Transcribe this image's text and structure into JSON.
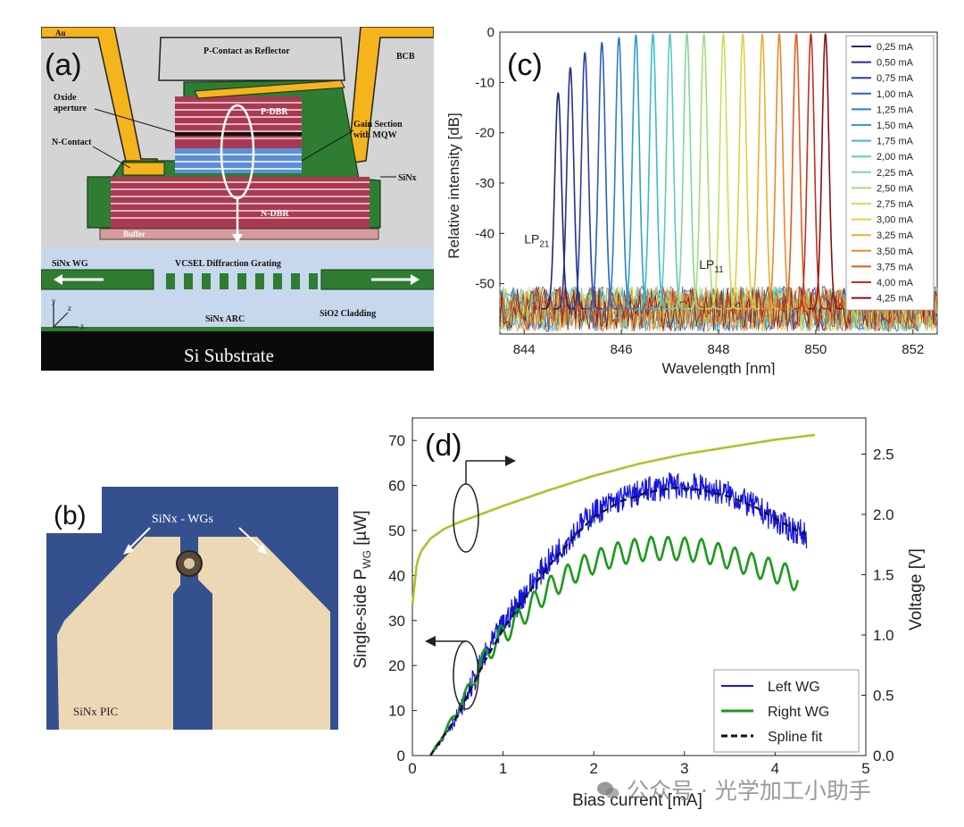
{
  "panel_a": {
    "label": "(a)",
    "texts": {
      "au": "Au",
      "p_contact": "P-Contact as Reflector",
      "bcb": "BCB",
      "oxide": "Oxide\naperture",
      "p_dbr": "P-DBR",
      "gain": "Gain Section\nwith MQW",
      "n_contact": "N-Contact",
      "sinx": "SiNx",
      "n_dbr": "N-DBR",
      "buffer": "Buffer",
      "sin_wg": "SiNx WG",
      "grating": "VCSEL Diffraction Grating",
      "axis_y": "y",
      "axis_z": "z",
      "axis_x": "x",
      "arc": "SiNx ARC",
      "cladding": "SiO2 Cladding",
      "substrate": "Si Substrate"
    },
    "colors": {
      "au": "#f5b41c",
      "green": "#2e7d32",
      "dbr": "#a83a52",
      "mqw": "#5b8fd6",
      "buffer": "#d89a9a",
      "bcb": "#d4d4d4",
      "cladding": "#c8d8ec",
      "substrate": "#0a0a0a"
    }
  },
  "panel_b": {
    "label": "(b)",
    "wg_label": "SiNx - WGs",
    "pic_label": "SiNx PIC",
    "colors": {
      "chip": "#34508f",
      "pad": "#ecd8b4"
    }
  },
  "chart_data": [
    {
      "panel": "(c)",
      "type": "line",
      "xlabel": "Wavelength [nm]",
      "ylabel": "Relative intensity [dB]",
      "xlim": [
        843.5,
        852.5
      ],
      "ylim": [
        -60,
        0
      ],
      "xticks": [
        844,
        846,
        848,
        850,
        852
      ],
      "yticks": [
        0,
        -10,
        -20,
        -30,
        -40,
        -50
      ],
      "annotations": [
        {
          "text": "LP21",
          "main": "LP",
          "sub": "21",
          "x": 844.0,
          "y": -42
        },
        {
          "text": "LP11",
          "main": "LP",
          "sub": "11",
          "x": 847.6,
          "y": -47
        }
      ],
      "legend_position": "top-right",
      "noise_floor_db": -55,
      "series": [
        {
          "name": "0,25 mA",
          "color": "#1f2a6b",
          "peak_nm": 844.7,
          "peak_db": -12
        },
        {
          "name": "0,50 mA",
          "color": "#24318a",
          "peak_nm": 844.95,
          "peak_db": -7
        },
        {
          "name": "0,75 mA",
          "color": "#2640a8",
          "peak_nm": 845.25,
          "peak_db": -4
        },
        {
          "name": "1,00 mA",
          "color": "#2860b8",
          "peak_nm": 845.6,
          "peak_db": -2
        },
        {
          "name": "1,25 mA",
          "color": "#2a80c4",
          "peak_nm": 845.95,
          "peak_db": -1
        },
        {
          "name": "1,50 mA",
          "color": "#2aa0d0",
          "peak_nm": 846.3,
          "peak_db": -0.5
        },
        {
          "name": "1,75 mA",
          "color": "#36bcd0",
          "peak_nm": 846.65,
          "peak_db": -0.3
        },
        {
          "name": "2,00 mA",
          "color": "#5cccb8",
          "peak_nm": 847.0,
          "peak_db": -0.3
        },
        {
          "name": "2,25 mA",
          "color": "#84d69a",
          "peak_nm": 847.35,
          "peak_db": -0.3
        },
        {
          "name": "2,50 mA",
          "color": "#a8dc78",
          "peak_nm": 847.7,
          "peak_db": -0.3
        },
        {
          "name": "2,75 mA",
          "color": "#c8e05a",
          "peak_nm": 848.1,
          "peak_db": -0.3
        },
        {
          "name": "3,00 mA",
          "color": "#e0d040",
          "peak_nm": 848.5,
          "peak_db": -0.3
        },
        {
          "name": "3,25 mA",
          "color": "#ecb030",
          "peak_nm": 848.9,
          "peak_db": -0.3
        },
        {
          "name": "3,50 mA",
          "color": "#e88a28",
          "peak_nm": 849.25,
          "peak_db": -0.3
        },
        {
          "name": "3,75 mA",
          "color": "#dc5e20",
          "peak_nm": 849.6,
          "peak_db": -0.3
        },
        {
          "name": "4,00 mA",
          "color": "#c0301c",
          "peak_nm": 849.9,
          "peak_db": -0.3
        },
        {
          "name": "4,25 mA",
          "color": "#8a1010",
          "peak_nm": 850.2,
          "peak_db": -0.3
        }
      ]
    },
    {
      "panel": "(d)",
      "type": "line",
      "xlabel": "Bias current [mA]",
      "ylabel": "Single-side P_WG [µW]",
      "ylabel_parts": [
        "Single-side P",
        "WG",
        " [µW]"
      ],
      "y2label": "Voltage [V]",
      "xlim": [
        0,
        5
      ],
      "ylim": [
        0,
        75
      ],
      "y2lim": [
        0,
        2.8
      ],
      "xticks": [
        0,
        1,
        2,
        3,
        4,
        5
      ],
      "yticks": [
        0,
        10,
        20,
        30,
        40,
        50,
        60,
        70
      ],
      "y2ticks": [
        "0.0",
        "0.5",
        "1.0",
        "1.5",
        "2.0",
        "2.5"
      ],
      "legend_position": "bottom-right",
      "series": [
        {
          "name": "Left WG",
          "axis": "left",
          "color": "#1414e0",
          "style": "noisy",
          "x": [
            0.2,
            0.5,
            0.8,
            1.0,
            1.2,
            1.5,
            1.8,
            2.0,
            2.3,
            2.6,
            2.9,
            3.2,
            3.5,
            3.8,
            4.1,
            4.35
          ],
          "y": [
            0,
            9,
            22,
            29,
            35,
            43,
            50,
            54,
            57,
            59,
            60,
            59.5,
            58,
            55,
            51,
            49
          ]
        },
        {
          "name": "Right WG",
          "axis": "left",
          "color": "#1a9a1a",
          "style": "ripple",
          "x": [
            0.2,
            0.5,
            0.8,
            1.0,
            1.2,
            1.5,
            1.8,
            2.0,
            2.3,
            2.6,
            2.9,
            3.2,
            3.5,
            3.8,
            4.0,
            4.25
          ],
          "y": [
            0,
            10,
            22,
            27,
            31,
            37,
            41,
            43,
            45,
            46,
            46,
            45.5,
            44,
            42,
            41,
            39
          ]
        },
        {
          "name": "Spline fit",
          "axis": "left",
          "color": "#111111",
          "style": "dashed",
          "x": [
            0.2,
            0.5,
            0.8,
            1.0,
            1.2,
            1.5,
            1.8,
            2.0,
            2.3,
            2.6,
            2.9,
            3.2,
            3.5,
            3.8,
            4.1,
            4.35
          ],
          "y": [
            0,
            9,
            21,
            28,
            34,
            42,
            49,
            53,
            56.5,
            58.5,
            59.5,
            59,
            57.5,
            55,
            51.5,
            49
          ]
        },
        {
          "name": "Voltage",
          "axis": "right",
          "color": "#b5bf2a",
          "style": "solid",
          "x": [
            0,
            0.05,
            0.1,
            0.2,
            0.35,
            0.5,
            0.75,
            1.0,
            1.5,
            2.0,
            2.5,
            3.0,
            3.5,
            4.0,
            4.45
          ],
          "y": [
            1.25,
            1.6,
            1.7,
            1.8,
            1.88,
            1.93,
            2.0,
            2.07,
            2.2,
            2.32,
            2.42,
            2.5,
            2.56,
            2.62,
            2.66
          ]
        }
      ]
    }
  ],
  "watermark": "公众号 · 光学加工小助手"
}
